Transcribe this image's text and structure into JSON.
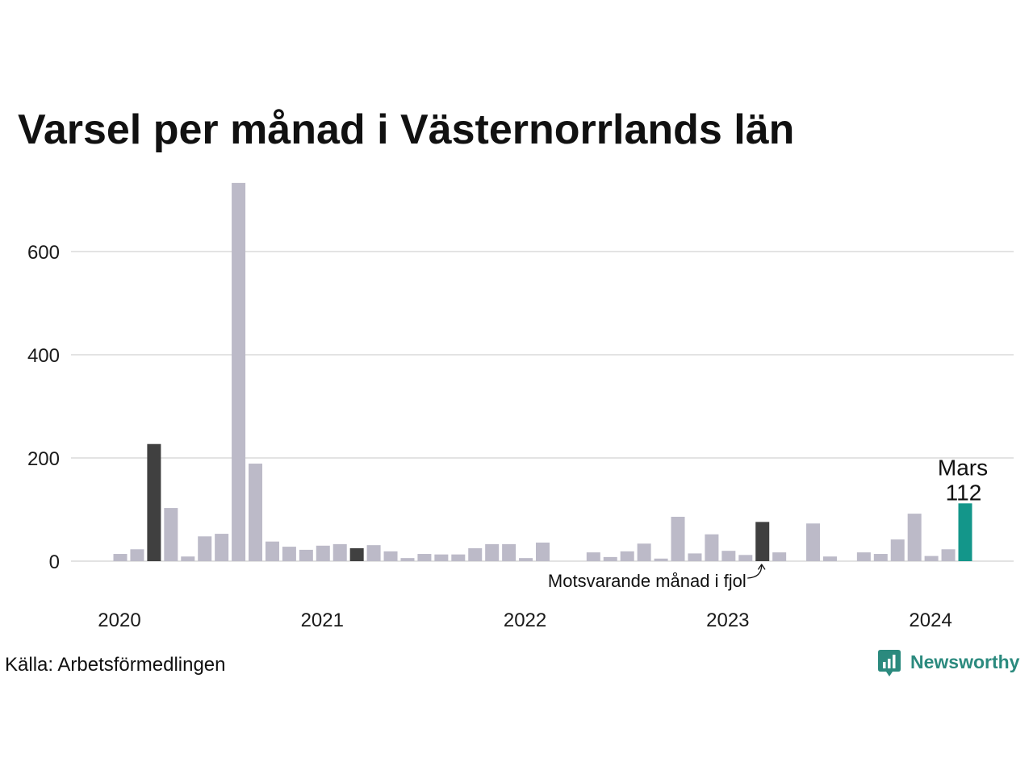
{
  "chart_data": {
    "type": "bar",
    "title": "Varsel per månad i Västernorrlands län",
    "x": [
      "2020-01",
      "2020-02",
      "2020-03",
      "2020-04",
      "2020-05",
      "2020-06",
      "2020-07",
      "2020-08",
      "2020-09",
      "2020-10",
      "2020-11",
      "2020-12",
      "2021-01",
      "2021-02",
      "2021-03",
      "2021-04",
      "2021-05",
      "2021-06",
      "2021-07",
      "2021-08",
      "2021-09",
      "2021-10",
      "2021-11",
      "2021-12",
      "2022-01",
      "2022-02",
      "2022-03",
      "2022-04",
      "2022-05",
      "2022-06",
      "2022-07",
      "2022-08",
      "2022-09",
      "2022-10",
      "2022-11",
      "2022-12",
      "2023-01",
      "2023-02",
      "2023-03",
      "2023-04",
      "2023-05",
      "2023-06",
      "2023-07",
      "2023-08",
      "2023-09",
      "2023-10",
      "2023-11",
      "2023-12",
      "2024-01",
      "2024-02",
      "2024-03"
    ],
    "values": [
      14,
      23,
      227,
      103,
      9,
      48,
      53,
      733,
      189,
      38,
      28,
      22,
      30,
      33,
      25,
      31,
      19,
      6,
      14,
      13,
      13,
      25,
      33,
      33,
      6,
      36,
      0,
      0,
      17,
      8,
      19,
      34,
      5,
      86,
      15,
      52,
      20,
      12,
      76,
      17,
      0,
      73,
      9,
      0,
      17,
      14,
      42,
      92,
      10,
      23,
      112
    ],
    "xticks": [
      "2020",
      "2021",
      "2022",
      "2023",
      "2024"
    ],
    "yticks": [
      0,
      200,
      400,
      600
    ],
    "ylim": [
      0,
      750
    ],
    "grid": true,
    "colors": {
      "default": "#bcbac8",
      "same_month_previous_years": "#404040",
      "current": "#13968a",
      "grid": "#e3e3e3"
    },
    "highlight_x": [
      "2020-03",
      "2021-03",
      "2022-03",
      "2023-03"
    ],
    "current": {
      "x": "2024-03",
      "label": "Mars",
      "value": 112
    },
    "annotation": {
      "text": "Motsvarande månad i fjol",
      "x": "2023-03"
    }
  },
  "source": "Källa: Arbetsförmedlingen",
  "logo": {
    "text": "Newsworthy",
    "icon": "newsworthy-logo-icon",
    "color": "#2b8a7e"
  }
}
